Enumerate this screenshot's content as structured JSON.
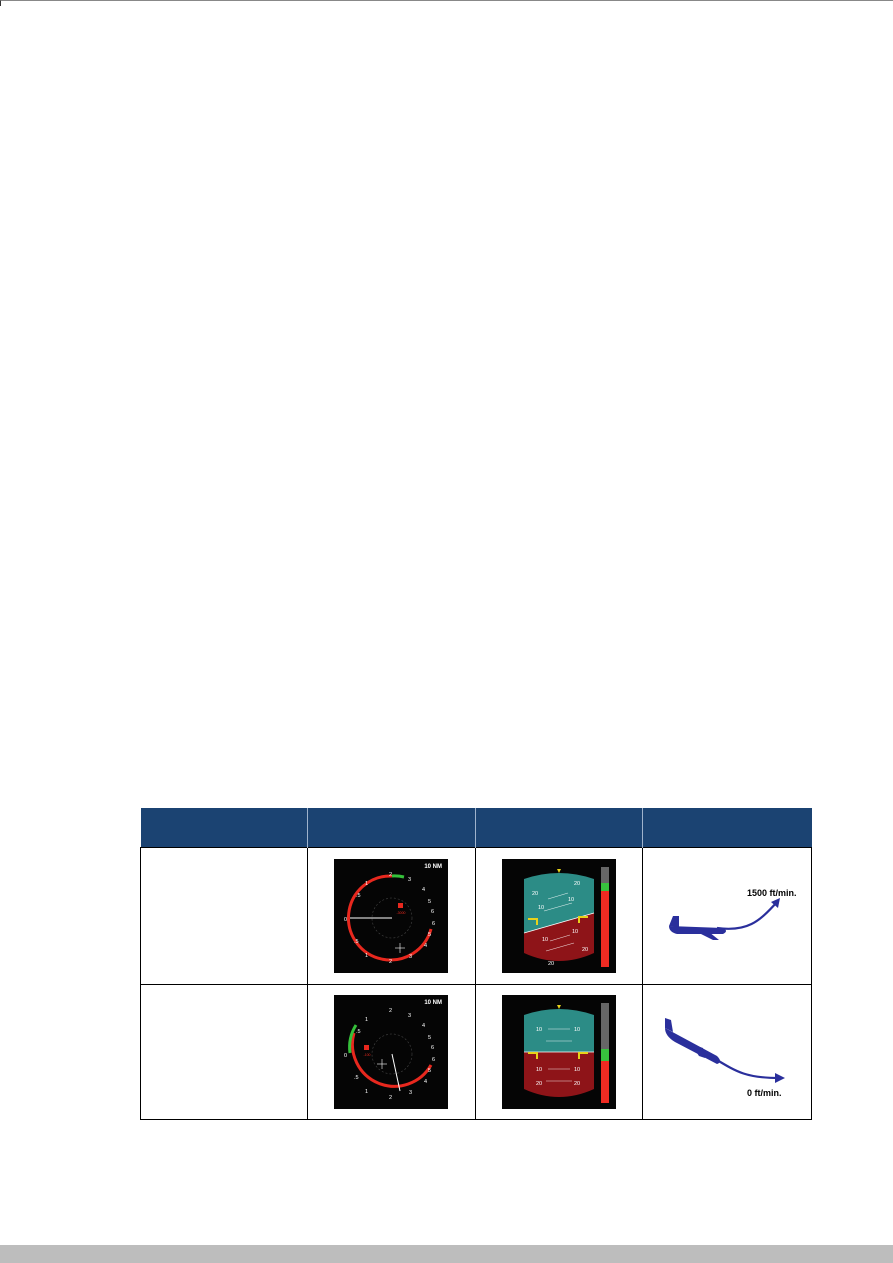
{
  "table": {
    "headers": [
      "",
      "",
      "",
      ""
    ],
    "rows": [
      {
        "label": "",
        "nd": {
          "range_label": "10 NM",
          "left_scale": [
            ".5",
            "1",
            "0",
            ".5",
            "1"
          ],
          "right_scale": [
            "2",
            "3",
            "4",
            "5",
            "6",
            "6",
            "5",
            "4",
            "3",
            "2"
          ],
          "target_label": "-3000",
          "colors": {
            "arc": "#e8281e",
            "safe": "#35c03a",
            "bg": "#050505"
          }
        },
        "pfd": {
          "pitch_labels": [
            "20",
            "20",
            "10",
            "10",
            "10",
            "10",
            "20",
            "20"
          ],
          "colors": {
            "sky": "#2c8c86",
            "ground": "#8e1418",
            "tape_red": "#ef2b22",
            "tape_green": "#37c23d"
          }
        },
        "trajectory": {
          "label": "1500 ft/min.",
          "icon": "airplane-icon",
          "color": "#2a2f9c"
        }
      },
      {
        "label": "",
        "nd": {
          "range_label": "10 NM",
          "left_scale": [
            ".5",
            "1",
            "0",
            ".5",
            "1"
          ],
          "right_scale": [
            "2",
            "3",
            "4",
            "5",
            "6",
            "6",
            "5",
            "4",
            "3",
            "2"
          ],
          "target_label": "-100",
          "colors": {
            "arc": "#e8281e",
            "safe": "#35c03a",
            "bg": "#050505"
          }
        },
        "pfd": {
          "pitch_labels": [
            "10",
            "10",
            "10",
            "10",
            "20",
            "20"
          ],
          "colors": {
            "sky": "#2c8c86",
            "ground": "#8e1418",
            "tape_red": "#ef2b22",
            "tape_green": "#37c23d"
          }
        },
        "trajectory": {
          "label": "0 ft/min.",
          "icon": "airplane-icon",
          "color": "#2a2f9c"
        }
      }
    ]
  }
}
